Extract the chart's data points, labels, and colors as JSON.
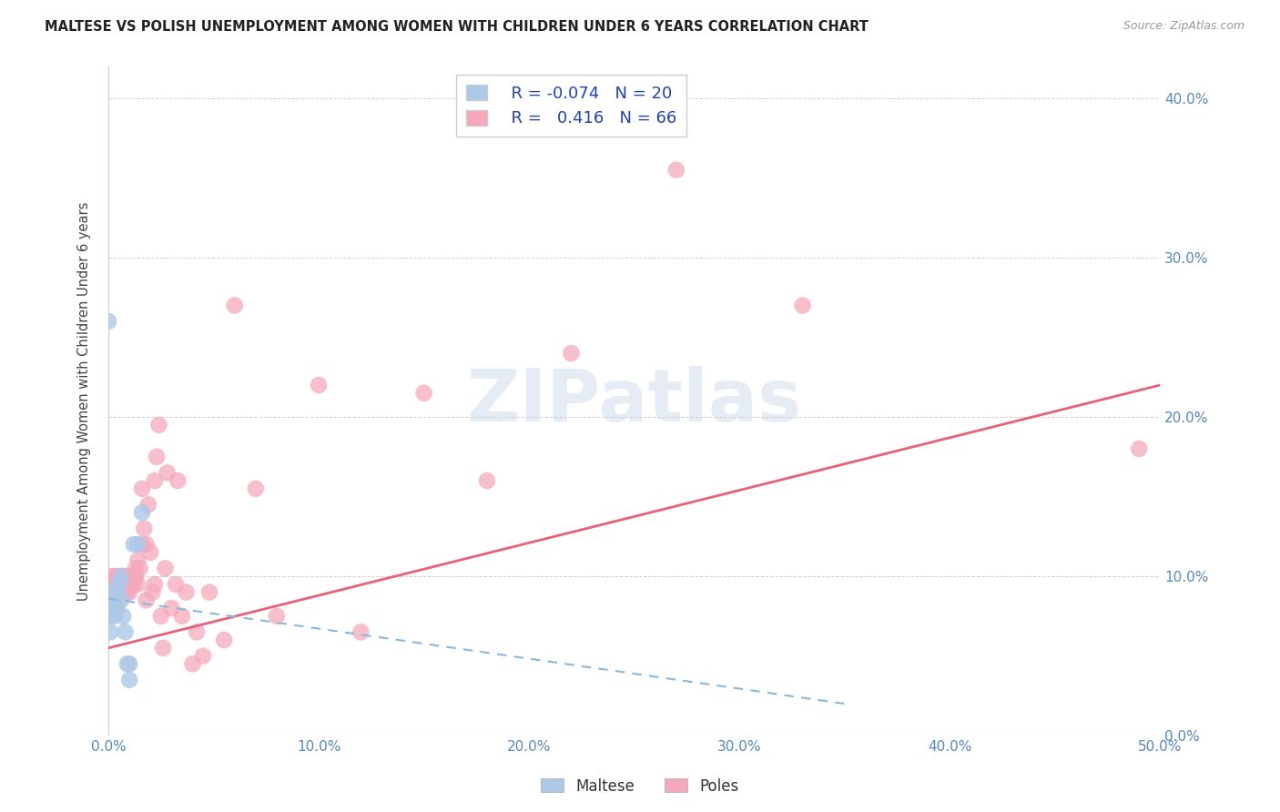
{
  "title": "MALTESE VS POLISH UNEMPLOYMENT AMONG WOMEN WITH CHILDREN UNDER 6 YEARS CORRELATION CHART",
  "source": "Source: ZipAtlas.com",
  "ylabel": "Unemployment Among Women with Children Under 6 years",
  "xlim": [
    0.0,
    0.5
  ],
  "ylim": [
    0.0,
    0.42
  ],
  "xticks": [
    0.0,
    0.1,
    0.2,
    0.3,
    0.4,
    0.5
  ],
  "yticks": [
    0.0,
    0.1,
    0.2,
    0.3,
    0.4
  ],
  "xtick_labels": [
    "0.0%",
    "10.0%",
    "20.0%",
    "30.0%",
    "40.0%",
    "50.0%"
  ],
  "ytick_labels": [
    "0.0%",
    "10.0%",
    "20.0%",
    "30.0%",
    "40.0%"
  ],
  "maltese_R": -0.074,
  "maltese_N": 20,
  "poles_R": 0.416,
  "poles_N": 66,
  "maltese_color": "#adc8e8",
  "poles_color": "#f5a8bc",
  "maltese_line_color": "#88b8e0",
  "poles_line_color": "#e8607a",
  "background_color": "#ffffff",
  "maltese_x": [
    0.001,
    0.001,
    0.002,
    0.002,
    0.003,
    0.003,
    0.004,
    0.004,
    0.005,
    0.006,
    0.006,
    0.007,
    0.008,
    0.009,
    0.01,
    0.01,
    0.012,
    0.014,
    0.016,
    0.0
  ],
  "maltese_y": [
    0.065,
    0.075,
    0.08,
    0.09,
    0.075,
    0.085,
    0.08,
    0.09,
    0.095,
    0.1,
    0.085,
    0.075,
    0.065,
    0.045,
    0.035,
    0.045,
    0.12,
    0.12,
    0.14,
    0.26
  ],
  "poles_x": [
    0.001,
    0.001,
    0.001,
    0.002,
    0.003,
    0.003,
    0.004,
    0.004,
    0.005,
    0.005,
    0.006,
    0.006,
    0.007,
    0.007,
    0.008,
    0.008,
    0.009,
    0.009,
    0.01,
    0.01,
    0.01,
    0.011,
    0.012,
    0.012,
    0.013,
    0.013,
    0.014,
    0.014,
    0.015,
    0.016,
    0.016,
    0.017,
    0.018,
    0.018,
    0.019,
    0.02,
    0.021,
    0.022,
    0.022,
    0.023,
    0.024,
    0.025,
    0.026,
    0.027,
    0.028,
    0.03,
    0.032,
    0.033,
    0.035,
    0.037,
    0.04,
    0.042,
    0.045,
    0.048,
    0.055,
    0.06,
    0.07,
    0.08,
    0.1,
    0.12,
    0.15,
    0.18,
    0.22,
    0.27,
    0.33,
    0.49
  ],
  "poles_y": [
    0.08,
    0.09,
    0.1,
    0.09,
    0.08,
    0.1,
    0.08,
    0.1,
    0.09,
    0.095,
    0.09,
    0.1,
    0.095,
    0.1,
    0.09,
    0.1,
    0.09,
    0.1,
    0.09,
    0.095,
    0.1,
    0.1,
    0.1,
    0.095,
    0.1,
    0.105,
    0.095,
    0.11,
    0.105,
    0.12,
    0.155,
    0.13,
    0.085,
    0.12,
    0.145,
    0.115,
    0.09,
    0.16,
    0.095,
    0.175,
    0.195,
    0.075,
    0.055,
    0.105,
    0.165,
    0.08,
    0.095,
    0.16,
    0.075,
    0.09,
    0.045,
    0.065,
    0.05,
    0.09,
    0.06,
    0.27,
    0.155,
    0.075,
    0.22,
    0.065,
    0.215,
    0.16,
    0.24,
    0.355,
    0.27,
    0.18
  ],
  "poles_line_x0": 0.0,
  "poles_line_y0": 0.055,
  "poles_line_x1": 0.5,
  "poles_line_y1": 0.22,
  "maltese_line_x0": 0.0,
  "maltese_line_y0": 0.086,
  "maltese_line_x1": 0.35,
  "maltese_line_y1": 0.02
}
